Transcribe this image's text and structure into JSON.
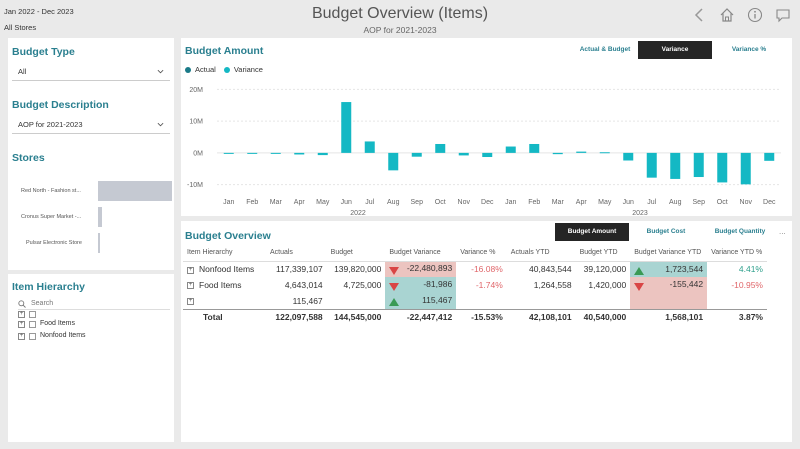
{
  "header": {
    "date_range": "Jan 2022 - Dec 2023",
    "store_filter": "All Stores",
    "title": "Budget Overview (Items)",
    "subtitle": "AOP for 2021-2023",
    "icons": [
      "back-arrow-icon",
      "home-icon",
      "info-icon",
      "comment-icon"
    ]
  },
  "filters": {
    "budget_type_label": "Budget Type",
    "budget_type_value": "All",
    "budget_desc_label": "Budget Description",
    "budget_desc_value": "AOP for 2021-2023",
    "stores_label": "Stores",
    "stores": [
      {
        "name": "Red North - Fashion st...",
        "share": 1.0
      },
      {
        "name": "Cronus Super Market -...",
        "share": 0.05
      },
      {
        "name": "Pulsar Electronic Store",
        "share": 0.015
      }
    ],
    "item_hierarchy_label": "Item Hierarchy",
    "search_placeholder": "Search",
    "tree": [
      {
        "label": ""
      },
      {
        "label": "Food Items"
      },
      {
        "label": "Nonfood Items"
      }
    ]
  },
  "chart_tabs": {
    "actual_budget": "Actual & Budget",
    "variance": "Variance",
    "variance_pct": "Variance %"
  },
  "table_tabs": {
    "budget_amount": "Budget Amount",
    "budget_cost": "Budget Cost",
    "budget_quantity": "Budget Quantity",
    "more": "..."
  },
  "chart_data": {
    "type": "bar",
    "title": "Budget Amount",
    "legend": [
      "Actual",
      "Variance"
    ],
    "colors": {
      "actual": "#1a7a88",
      "variance": "#14b8c4"
    },
    "categories": [
      "Jan",
      "Feb",
      "Mar",
      "Apr",
      "May",
      "Jun",
      "Jul",
      "Aug",
      "Sep",
      "Oct",
      "Nov",
      "Dec",
      "Jan",
      "Feb",
      "Mar",
      "Apr",
      "May",
      "Jun",
      "Jul",
      "Aug",
      "Sep",
      "Oct",
      "Nov",
      "Dec"
    ],
    "year_labels": [
      "2022",
      "2023"
    ],
    "series": [
      {
        "name": "Variance",
        "values": [
          -0.3,
          -0.3,
          -0.3,
          -0.5,
          -0.7,
          16,
          3.6,
          -5.5,
          -1.2,
          2.8,
          -0.8,
          -1.3,
          2,
          2.8,
          -0.4,
          0.4,
          0.2,
          -2.4,
          -7.8,
          -8.2,
          -7.6,
          -9.3,
          -9.9,
          -2.5
        ]
      }
    ],
    "yticks": [
      "20M",
      "10M",
      "0M",
      "-10M"
    ],
    "ylim": [
      -12,
      22
    ]
  },
  "table": {
    "title": "Budget Overview",
    "columns": [
      "Item Hierarchy",
      "Actuals",
      "Budget",
      "Budget Variance",
      "Variance %",
      "Actuals YTD",
      "Budget YTD",
      "Budget Variance YTD",
      "Variance YTD %"
    ],
    "rows": [
      {
        "item": "Nonfood Items",
        "actuals": "117,339,107",
        "budget": "139,820,000",
        "var": "-22,480,893",
        "var_pct": "-16.08%",
        "act_ytd": "40,843,544",
        "bud_ytd": "39,120,000",
        "var_ytd": "1,723,544",
        "var_ytd_pct": "4.41%"
      },
      {
        "item": "Food Items",
        "actuals": "4,643,014",
        "budget": "4,725,000",
        "var": "-81,986",
        "var_pct": "-1.74%",
        "act_ytd": "1,264,558",
        "bud_ytd": "1,420,000",
        "var_ytd": "-155,442",
        "var_ytd_pct": "-10.95%"
      },
      {
        "item": "",
        "actuals": "115,467",
        "budget": "",
        "var": "115,467",
        "var_pct": "",
        "act_ytd": "",
        "bud_ytd": "",
        "var_ytd": "",
        "var_ytd_pct": ""
      }
    ],
    "total": {
      "item": "Total",
      "actuals": "122,097,588",
      "budget": "144,545,000",
      "var": "-22,447,412",
      "var_pct": "-15.53%",
      "act_ytd": "42,108,101",
      "bud_ytd": "40,540,000",
      "var_ytd": "1,568,101",
      "var_ytd_pct": "3.87%"
    }
  }
}
